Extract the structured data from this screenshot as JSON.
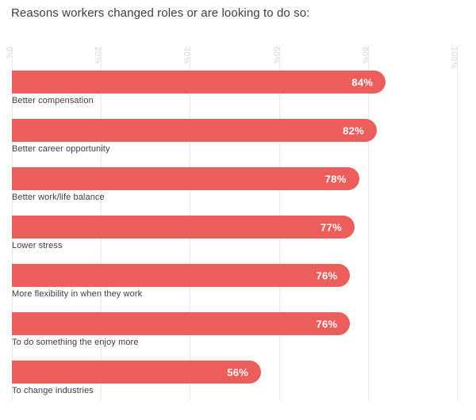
{
  "page": {
    "title": "Reasons workers changed roles or are looking to do so:"
  },
  "chart_data": {
    "type": "bar",
    "orientation": "horizontal",
    "title": "Reasons workers changed roles or are looking to do so:",
    "categories": [
      "Better compensation",
      "Better career opportunity",
      "Better work/life balance",
      "Lower stress",
      "More flexibility in when they work",
      "To do something the enjoy more",
      "To change industries"
    ],
    "values": [
      84,
      82,
      78,
      77,
      76,
      76,
      56
    ],
    "value_labels": [
      "84%",
      "82%",
      "78%",
      "77%",
      "76%",
      "76%",
      "56%"
    ],
    "x_ticks": [
      "0%",
      "20%",
      "40%",
      "60%",
      "80%",
      "100%"
    ],
    "xlim": [
      0,
      100
    ],
    "xlabel": "",
    "ylabel": "",
    "grid": "vertical",
    "legend": "none",
    "tick_label_rotation_deg": 90,
    "colors": {
      "bar": "#eb5e5c",
      "value_text": "#ffffff",
      "gridline": "#e9e9e9",
      "tick_text": "#d8d8d8",
      "category_text": "#3c4043",
      "title_text": "#3c4043",
      "background": "#ffffff"
    }
  }
}
